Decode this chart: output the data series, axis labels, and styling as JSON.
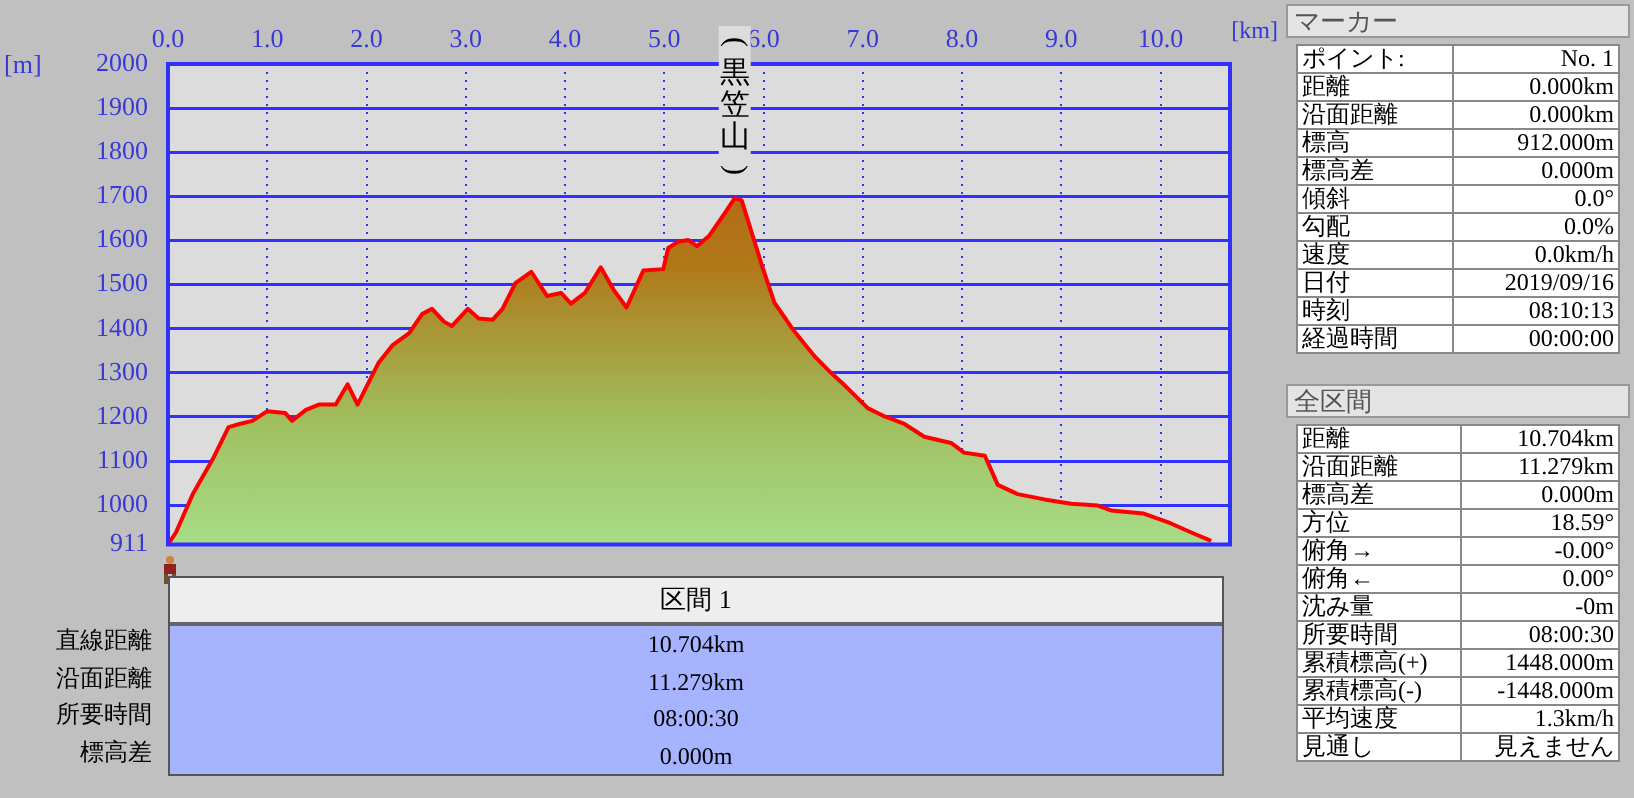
{
  "chart_data": {
    "type": "area",
    "xlabel": "[km]",
    "ylabel": "[m]",
    "xlim": [
      0,
      10.7
    ],
    "xticks": [
      {
        "value": 0,
        "label": "0.0"
      },
      {
        "value": 1,
        "label": "1.0"
      },
      {
        "value": 2,
        "label": "2.0"
      },
      {
        "value": 3,
        "label": "3.0"
      },
      {
        "value": 4,
        "label": "4.0"
      },
      {
        "value": 5,
        "label": "5.0"
      },
      {
        "value": 6,
        "label": "6.0"
      },
      {
        "value": 7,
        "label": "7.0"
      },
      {
        "value": 8,
        "label": "8.0"
      },
      {
        "value": 9,
        "label": "9.0"
      },
      {
        "value": 10,
        "label": "10.0"
      }
    ],
    "ylim": [
      911,
      2000
    ],
    "yticks": [
      911,
      1000,
      1100,
      1200,
      1300,
      1400,
      1500,
      1600,
      1700,
      1800,
      1900,
      2000
    ],
    "grid": true,
    "marker": "none",
    "line_style": "solid",
    "series": [
      {
        "color": "#ff0000",
        "x": [
          0,
          0.08,
          0.25,
          0.45,
          0.61,
          0.72,
          0.85,
          1.0,
          1.18,
          1.25,
          1.39,
          1.52,
          1.69,
          1.81,
          1.91,
          1.99,
          2.12,
          2.26,
          2.43,
          2.56,
          2.66,
          2.78,
          2.86,
          3.02,
          3.13,
          3.27,
          3.37,
          3.5,
          3.66,
          3.82,
          3.96,
          4.06,
          4.2,
          4.36,
          4.49,
          4.62,
          4.79,
          4.99,
          5.04,
          5.14,
          5.24,
          5.33,
          5.45,
          5.61,
          5.71,
          5.78,
          5.91,
          5.98,
          6.11,
          6.31,
          6.52,
          6.68,
          6.82,
          7.05,
          7.22,
          7.42,
          7.62,
          7.89,
          8.02,
          8.23,
          8.36,
          8.56,
          8.83,
          9.1,
          9.37,
          9.5,
          9.83,
          10.1,
          10.31,
          10.51
        ],
        "values": [
          911,
          938,
          1025,
          1104,
          1177,
          1184,
          1191,
          1213,
          1209,
          1191,
          1216,
          1228,
          1228,
          1274,
          1228,
          1264,
          1322,
          1362,
          1390,
          1433,
          1445,
          1416,
          1406,
          1445,
          1423,
          1420,
          1445,
          1503,
          1529,
          1474,
          1481,
          1457,
          1481,
          1539,
          1488,
          1448,
          1532,
          1535,
          1583,
          1597,
          1601,
          1587,
          1610,
          1662,
          1696,
          1691,
          1597,
          1546,
          1459,
          1394,
          1336,
          1300,
          1271,
          1220,
          1201,
          1184,
          1155,
          1141,
          1119,
          1112,
          1046,
          1025,
          1013,
          1003,
          999,
          988,
          981,
          959,
          938,
          919
        ]
      }
    ],
    "annotations": [
      {
        "text": "(黒笠山)",
        "x": 5.71,
        "y": 1696
      },
      "マーカー",
      "ポイント:",
      "No. 1",
      "距離",
      "0.000km",
      "沿面距離",
      "0.000km",
      "標高",
      "912.000m",
      "標高差",
      "0.000m",
      "傾斜",
      "0.0°",
      "勾配",
      "0.0%",
      "速度",
      "0.0km/h",
      "日付",
      "2019/09/16",
      "時刻",
      "08:10:13",
      "経過時間",
      "00:00:00",
      "全区間",
      "距離",
      "10.704km",
      "沿面距離",
      "11.279km",
      "標高差",
      "0.000m",
      "方位",
      "18.59°",
      "俯角→",
      "-0.00°",
      "俯角←",
      "0.00°",
      "沈み量",
      "-0m",
      "所要時間",
      "08:00:30",
      "累積標高(+)",
      "1448.000m",
      "累積標高(-)",
      "-1448.000m",
      "平均速度",
      "1.3km/h",
      "見通し",
      "見えません",
      "区間 1",
      "直線距離",
      "10.704km",
      "沿面距離",
      "11.279km",
      "所要時間",
      "08:00:30",
      "標高差",
      "0.000m"
    ]
  }
}
